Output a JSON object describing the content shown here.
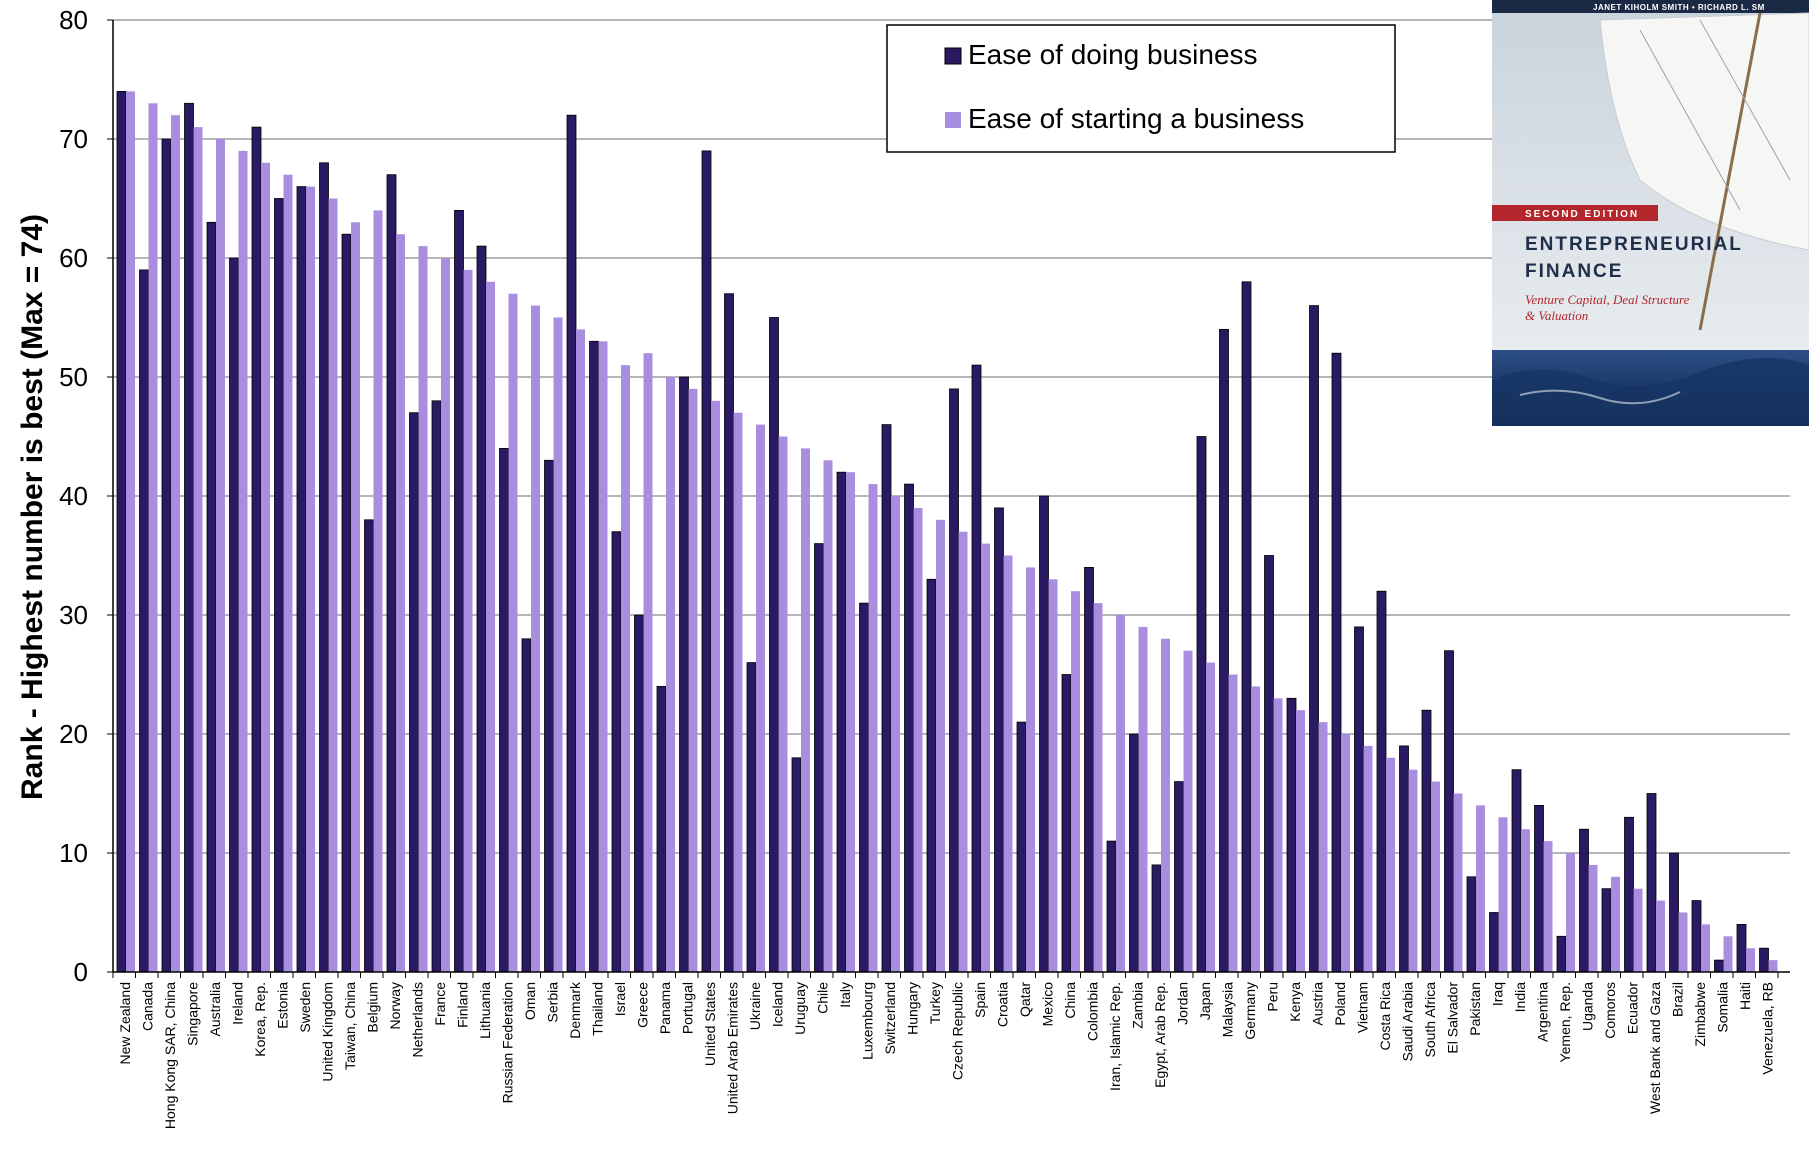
{
  "chart_data": {
    "type": "bar",
    "title": "",
    "xlabel": "",
    "ylabel": "Rank - Highest number is best (Max = 74)",
    "ylim": [
      0,
      80
    ],
    "yticks": [
      0,
      10,
      20,
      30,
      40,
      50,
      60,
      70,
      80
    ],
    "grid": true,
    "legend_position": "top-center",
    "categories": [
      "New Zealand",
      "Canada",
      "Hong Kong SAR, China",
      "Singapore",
      "Australia",
      "Ireland",
      "Korea, Rep.",
      "Estonia",
      "Sweden",
      "United Kingdom",
      "Taiwan, China",
      "Belgium",
      "Norway",
      "Netherlands",
      "France",
      "Finland",
      "Lithuania",
      "Russian Federation",
      "Oman",
      "Serbia",
      "Denmark",
      "Thailand",
      "Israel",
      "Greece",
      "Panama",
      "Portugal",
      "United States",
      "United Arab Emirates",
      "Ukraine",
      "Iceland",
      "Uruguay",
      "Chile",
      "Italy",
      "Luxembourg",
      "Switzerland",
      "Hungary",
      "Turkey",
      "Czech Republic",
      "Spain",
      "Croatia",
      "Qatar",
      "Mexico",
      "China",
      "Colombia",
      "Iran, Islamic Rep.",
      "Zambia",
      "Egypt, Arab Rep.",
      "Jordan",
      "Japan",
      "Malaysia",
      "Germany",
      "Peru",
      "Kenya",
      "Austria",
      "Poland",
      "Vietnam",
      "Costa Rica",
      "Saudi Arabia",
      "South Africa",
      "El Salvador",
      "Pakistan",
      "Iraq",
      "India",
      "Argentina",
      "Yemen, Rep.",
      "Uganda",
      "Comoros",
      "Ecuador",
      "West Bank and Gaza",
      "Brazil",
      "Zimbabwe",
      "Somalia",
      "Haiti",
      "Venezuela, RB"
    ],
    "series": [
      {
        "name": "Ease of doing business",
        "color": "#2a1a63",
        "values": [
          74,
          59,
          70,
          73,
          63,
          60,
          71,
          65,
          66,
          68,
          62,
          38,
          67,
          47,
          48,
          64,
          61,
          44,
          28,
          43,
          72,
          53,
          37,
          30,
          24,
          50,
          69,
          57,
          26,
          55,
          18,
          36,
          42,
          31,
          46,
          41,
          33,
          49,
          51,
          39,
          21,
          40,
          25,
          34,
          11,
          20,
          9,
          16,
          45,
          54,
          58,
          35,
          23,
          56,
          52,
          29,
          32,
          19,
          22,
          27,
          8,
          5,
          17,
          14,
          3,
          12,
          7,
          13,
          15,
          10,
          6,
          1,
          4,
          2
        ]
      },
      {
        "name": "Ease of starting a business",
        "color": "#a98ee0",
        "values": [
          74,
          73,
          72,
          71,
          70,
          69,
          68,
          67,
          66,
          65,
          63,
          64,
          62,
          61,
          60,
          59,
          58,
          57,
          56,
          55,
          54,
          53,
          51,
          52,
          50,
          49,
          48,
          47,
          46,
          45,
          44,
          43,
          42,
          41,
          40,
          39,
          38,
          37,
          36,
          35,
          34,
          33,
          32,
          31,
          30,
          29,
          28,
          27,
          26,
          25,
          24,
          23,
          22,
          21,
          20,
          19,
          18,
          17,
          16,
          15,
          14,
          13,
          12,
          11,
          10,
          9,
          8,
          7,
          6,
          5,
          4,
          3,
          2,
          1
        ]
      }
    ]
  },
  "cover": {
    "authors": "JANET KIHOLM SMITH  •  RICHARD L. SM",
    "edition": "SECOND EDITION",
    "title_line1": "ENTREPRENEURIAL",
    "title_line2": "FINANCE",
    "subtitle_line1": "Venture Capital, Deal Structure",
    "subtitle_line2": "& Valuation"
  }
}
